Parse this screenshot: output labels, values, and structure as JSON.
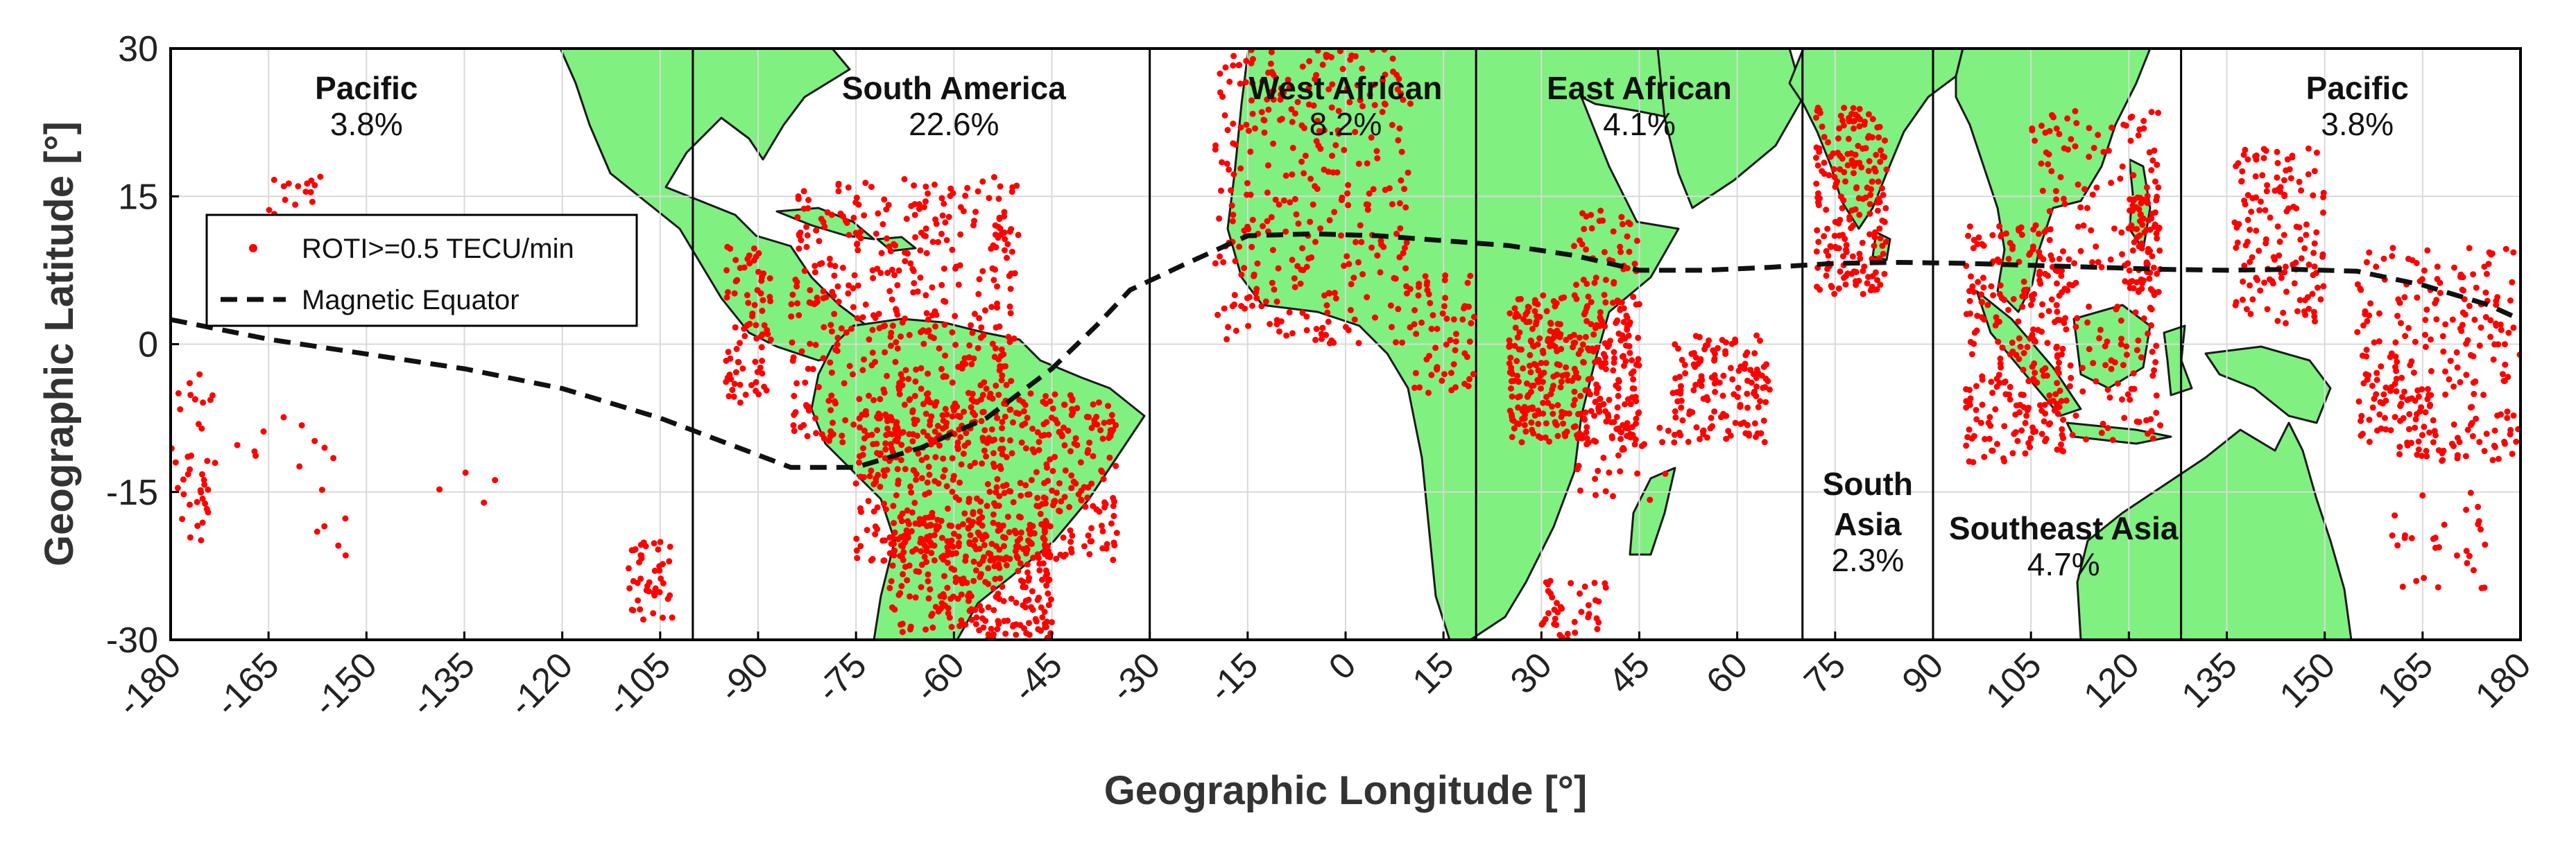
{
  "chart_data": {
    "type": "scatter",
    "xlabel": "Geographic Longitude [°]",
    "ylabel": "Geographic Latitude [°]",
    "xlim": [
      -180,
      180
    ],
    "ylim": [
      -30,
      30
    ],
    "xticks": [
      "-180",
      "-165",
      "-150",
      "-135",
      "-120",
      "-105",
      "-90",
      "-75",
      "-60",
      "-45",
      "-30",
      "-15",
      "0",
      "15",
      "30",
      "45",
      "60",
      "75",
      "90",
      "105",
      "120",
      "135",
      "150",
      "165",
      "180"
    ],
    "yticks": [
      "30",
      "15",
      "0",
      "-15",
      "-30"
    ],
    "grid": true,
    "colors": {
      "land": "#80f080",
      "coast": "#1a1a1a",
      "points": "#ff0000",
      "equator": "#111111",
      "frame": "#000000"
    },
    "region_boundaries": [
      -100,
      -30,
      20,
      70,
      90,
      128
    ],
    "regions": [
      {
        "name": "Pacific",
        "pct": "3.8%",
        "lon": -150
      },
      {
        "name": "South America",
        "pct": "22.6%",
        "lon": -60
      },
      {
        "name": "West African",
        "pct": "8.2%",
        "lon": 0
      },
      {
        "name": "East African",
        "pct": "4.1%",
        "lon": 45
      },
      {
        "name": "South Asia",
        "pct": "2.3%",
        "lon": 80
      },
      {
        "name": "Southeast Asia",
        "pct": "4.7%",
        "lon": 110
      },
      {
        "name": "Pacific",
        "pct": "3.8%",
        "lon": 155
      }
    ],
    "legend": {
      "placement": "upper-left",
      "entries": [
        {
          "label": "ROTI>=0.5 TECU/min",
          "marker": "dot"
        },
        {
          "label": "Magnetic Equator",
          "marker": "dashed-line"
        }
      ]
    },
    "magnetic_equator": {
      "lon": [
        -180,
        -165,
        -150,
        -135,
        -120,
        -105,
        -95,
        -85,
        -75,
        -65,
        -55,
        -45,
        -38,
        -33,
        -25,
        -15,
        -5,
        5,
        15,
        25,
        35,
        45,
        55,
        65,
        75,
        85,
        95,
        105,
        115,
        125,
        135,
        145,
        155,
        165,
        175,
        180
      ],
      "lat": [
        2.5,
        0.5,
        -1,
        -2.5,
        -4.5,
        -7.5,
        -10,
        -12.5,
        -12.5,
        -10.5,
        -7.5,
        -2.5,
        2,
        5.5,
        8,
        11,
        11.2,
        11,
        10.5,
        10,
        9,
        7.5,
        7.5,
        7.8,
        8.2,
        8.3,
        8.2,
        8,
        7.8,
        7.6,
        7.5,
        7.6,
        7.4,
        6,
        4,
        2.5
      ]
    },
    "roti_clusters": [
      {
        "lon": [
          -180,
          -173
        ],
        "lat": [
          -20,
          -3
        ],
        "n": 40
      },
      {
        "lon": [
          -170,
          -155
        ],
        "lat": [
          -16,
          -7
        ],
        "n": 10
      },
      {
        "lon": [
          -165,
          -155
        ],
        "lat": [
          12,
          17
        ],
        "n": 16
      },
      {
        "lon": [
          -160,
          -150
        ],
        "lat": [
          -23,
          -11
        ],
        "n": 6
      },
      {
        "lon": [
          -140,
          -130
        ],
        "lat": [
          -18,
          -12
        ],
        "n": 4
      },
      {
        "lon": [
          -110,
          -103
        ],
        "lat": [
          -28,
          -20
        ],
        "n": 45
      },
      {
        "lon": [
          -95,
          -88
        ],
        "lat": [
          -6,
          10
        ],
        "n": 80
      },
      {
        "lon": [
          -85,
          -50
        ],
        "lat": [
          -10,
          17
        ],
        "n": 450
      },
      {
        "lon": [
          -75,
          -35
        ],
        "lat": [
          -22,
          -5
        ],
        "n": 480
      },
      {
        "lon": [
          -70,
          -45
        ],
        "lat": [
          -30,
          -18
        ],
        "n": 280
      },
      {
        "lon": [
          -20,
          10
        ],
        "lat": [
          0,
          30
        ],
        "n": 320
      },
      {
        "lon": [
          10,
          20
        ],
        "lat": [
          -5,
          7
        ],
        "n": 60
      },
      {
        "lon": [
          25,
          45
        ],
        "lat": [
          -10,
          5
        ],
        "n": 360
      },
      {
        "lon": [
          35,
          45
        ],
        "lat": [
          6,
          14
        ],
        "n": 40
      },
      {
        "lon": [
          50,
          65
        ],
        "lat": [
          -10,
          1
        ],
        "n": 140
      },
      {
        "lon": [
          35,
          50
        ],
        "lat": [
          -16,
          -8
        ],
        "n": 35
      },
      {
        "lon": [
          30,
          40
        ],
        "lat": [
          -30,
          -24
        ],
        "n": 40
      },
      {
        "lon": [
          72,
          83
        ],
        "lat": [
          5,
          24
        ],
        "n": 200
      },
      {
        "lon": [
          95,
          110
        ],
        "lat": [
          -12,
          12
        ],
        "n": 220
      },
      {
        "lon": [
          105,
          125
        ],
        "lat": [
          -10,
          24
        ],
        "n": 220
      },
      {
        "lon": [
          120,
          125
        ],
        "lat": [
          5,
          15
        ],
        "n": 60
      },
      {
        "lon": [
          136,
          150
        ],
        "lat": [
          2,
          20
        ],
        "n": 140
      },
      {
        "lon": [
          155,
          180
        ],
        "lat": [
          -12,
          10
        ],
        "n": 260
      },
      {
        "lon": [
          160,
          175
        ],
        "lat": [
          -25,
          -15
        ],
        "n": 30
      }
    ]
  }
}
